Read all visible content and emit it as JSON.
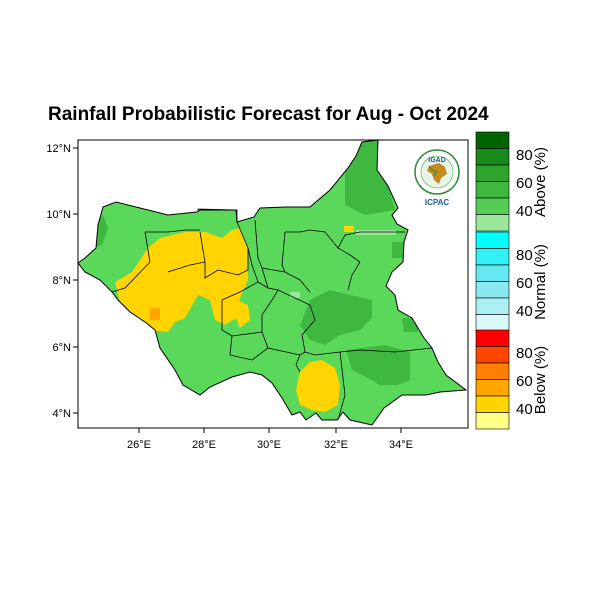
{
  "title": "Rainfall Probabilistic Forecast for Aug - Oct 2024",
  "map": {
    "lat_ticks": [
      "12°N",
      "10°N",
      "8°N",
      "6°N",
      "4°N"
    ],
    "lon_ticks": [
      "26°E",
      "28°E",
      "30°E",
      "32°E",
      "34°E"
    ],
    "lon_range": [
      24,
      36
    ],
    "lat_range": [
      3.5,
      12.5
    ]
  },
  "logo": {
    "top_text": "IGAD",
    "bottom_text": "ICPAC"
  },
  "legend": {
    "above": {
      "title": "Above (%)",
      "labels": [
        "80",
        "60",
        "40"
      ],
      "colors": [
        "#006400",
        "#1a8a1a",
        "#2ea32e",
        "#3fb83f",
        "#55cc55",
        "#9ae89a"
      ]
    },
    "normal": {
      "title": "Normal (%)",
      "labels": [
        "80",
        "60",
        "40"
      ],
      "colors": [
        "#00ffff",
        "#33f0f5",
        "#66e8f0",
        "#8ae8f0",
        "#aaf0f5",
        "#d8fafc"
      ]
    },
    "below": {
      "title": "Below (%)",
      "labels": [
        "80",
        "60",
        "40"
      ],
      "colors": [
        "#ff0000",
        "#ff4500",
        "#ff7f00",
        "#ffa500",
        "#ffd400",
        "#ffff88"
      ]
    }
  },
  "colors": {
    "base_green": "#5ad85a",
    "dark_green": "#3fb83f",
    "darker_green": "#2ea32e",
    "yellow": "#ffd400",
    "orange": "#ffa500",
    "light_green": "#9ae89a"
  }
}
